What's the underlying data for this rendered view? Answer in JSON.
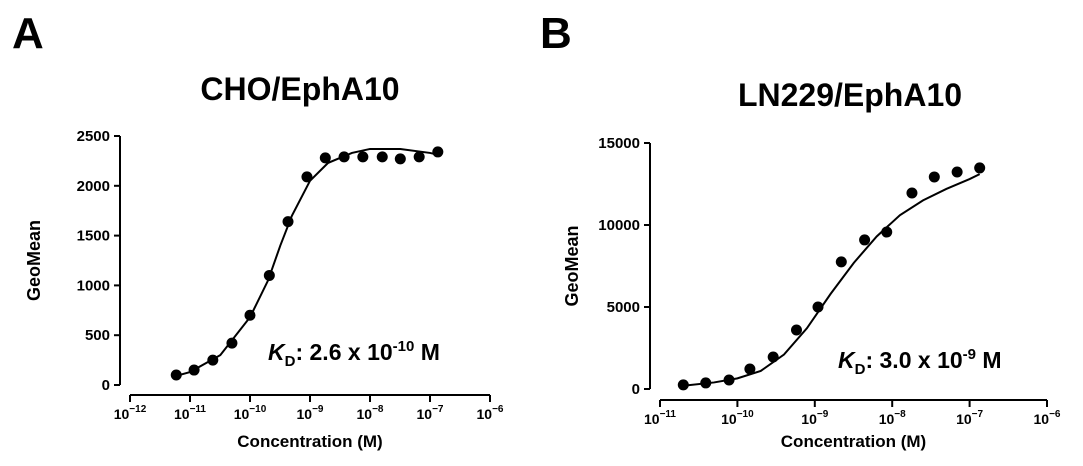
{
  "chart_data": [
    {
      "type": "scatter",
      "panel_label": "A",
      "title": "CHO/EphA10",
      "xlabel": "Concentration (M)",
      "ylabel": "GeoMean",
      "xscale": "log",
      "xlim": [
        1e-12,
        1e-06
      ],
      "xticks": [
        {
          "value": 1e-12,
          "label": "10−12"
        },
        {
          "value": 1e-11,
          "label": "10−11"
        },
        {
          "value": 1e-10,
          "label": "10−10"
        },
        {
          "value": 1e-09,
          "label": "10−9"
        },
        {
          "value": 1e-08,
          "label": "10−8"
        },
        {
          "value": 1e-07,
          "label": "10−7"
        },
        {
          "value": 1e-06,
          "label": "10−6"
        }
      ],
      "ylim": [
        0,
        2500
      ],
      "yticks": [
        0,
        500,
        1000,
        1500,
        2000,
        2500
      ],
      "annotation": {
        "k": "K",
        "sub": "D",
        "text": ": 2.6 x 10",
        "sup": "-10",
        "unit": " M"
      },
      "series": [
        {
          "mode": "markers",
          "color": "#000000",
          "x": [
            5.9e-12,
            1.17e-11,
            2.4e-11,
            5e-11,
            1e-10,
            2.1e-10,
            4.3e-10,
            8.9e-10,
            1.8e-09,
            3.7e-09,
            7.6e-09,
            1.6e-08,
            3.2e-08,
            6.6e-08,
            1.35e-07
          ],
          "values": [
            100,
            150,
            250,
            420,
            700,
            1100,
            1640,
            2090,
            2280,
            2290,
            2290,
            2290,
            2270,
            2290,
            2340
          ]
        },
        {
          "mode": "line",
          "color": "#000000",
          "x": [
            5e-12,
            1e-11,
            3.2e-11,
            1e-10,
            2e-10,
            3.2e-10,
            5e-10,
            1e-09,
            2e-09,
            5e-09,
            1e-08,
            3.2e-08,
            1e-07,
            1.4e-07
          ],
          "values": [
            80,
            130,
            300,
            680,
            1050,
            1400,
            1700,
            2050,
            2230,
            2330,
            2370,
            2370,
            2330,
            2310
          ]
        }
      ]
    },
    {
      "type": "scatter",
      "panel_label": "B",
      "title": "LN229/EphA10",
      "xlabel": "Concentration (M)",
      "ylabel": "GeoMean",
      "xscale": "log",
      "xlim": [
        1e-11,
        1e-06
      ],
      "xticks": [
        {
          "value": 1e-11,
          "label": "10−11"
        },
        {
          "value": 1e-10,
          "label": "10−10"
        },
        {
          "value": 1e-09,
          "label": "10−9"
        },
        {
          "value": 1e-08,
          "label": "10−8"
        },
        {
          "value": 1e-07,
          "label": "10−7"
        },
        {
          "value": 1e-06,
          "label": "10−6"
        }
      ],
      "ylim": [
        0,
        15000
      ],
      "yticks": [
        0,
        5000,
        10000,
        15000
      ],
      "annotation": {
        "k": "K",
        "sub": "D",
        "text": ": 3.0 x 10",
        "sup": "-9",
        "unit": " M"
      },
      "series": [
        {
          "mode": "markers",
          "color": "#000000",
          "x": [
            2e-11,
            3.9e-11,
            7.8e-11,
            1.45e-10,
            2.9e-10,
            5.8e-10,
            1.1e-09,
            2.2e-09,
            4.4e-09,
            8.5e-09,
            1.8e-08,
            3.5e-08,
            6.9e-08,
            1.35e-07
          ],
          "values": [
            250,
            370,
            550,
            1220,
            1950,
            3600,
            5000,
            7750,
            9090,
            9570,
            11950,
            12930,
            13230,
            13480
          ]
        },
        {
          "mode": "line",
          "color": "#000000",
          "x": [
            2e-11,
            5e-11,
            1e-10,
            2e-10,
            4e-10,
            7.9e-10,
            1.6e-09,
            3.2e-09,
            6.3e-09,
            1.26e-08,
            2.5e-08,
            5e-08,
            1e-07,
            1.35e-07
          ],
          "values": [
            200,
            400,
            650,
            1100,
            2100,
            3700,
            5800,
            7700,
            9300,
            10600,
            11500,
            12200,
            12800,
            13100
          ]
        }
      ]
    }
  ]
}
